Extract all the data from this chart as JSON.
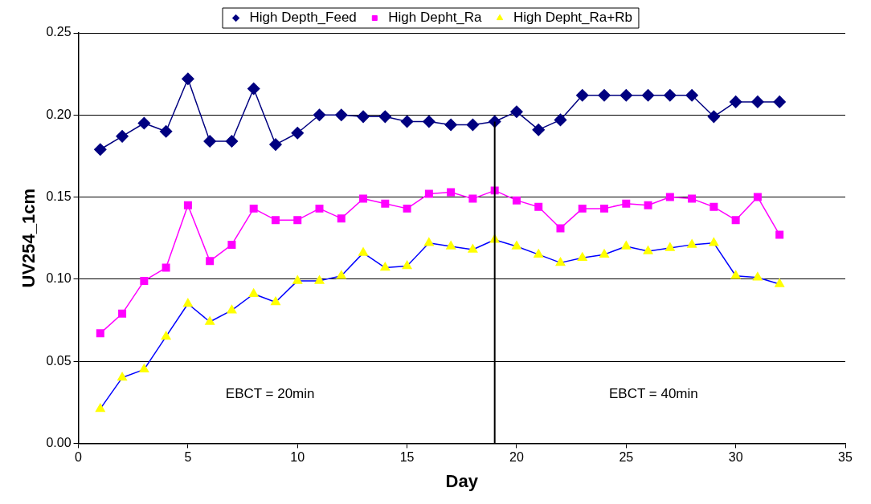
{
  "chart_data": {
    "type": "line",
    "xlabel": "Day",
    "ylabel": "UV254_1cm",
    "x": [
      1,
      2,
      3,
      4,
      5,
      6,
      7,
      8,
      9,
      10,
      11,
      12,
      13,
      14,
      15,
      16,
      17,
      18,
      19,
      20,
      21,
      22,
      23,
      24,
      25,
      26,
      27,
      28,
      29,
      30,
      31,
      32
    ],
    "series": [
      {
        "name": "High Depth_Feed",
        "color": "#000080",
        "marker": "diamond",
        "values": [
          0.179,
          0.187,
          0.195,
          0.19,
          0.222,
          0.184,
          0.184,
          0.216,
          0.182,
          0.189,
          0.2,
          0.2,
          0.199,
          0.199,
          0.196,
          0.196,
          0.194,
          0.194,
          0.196,
          0.202,
          0.191,
          0.197,
          0.212,
          0.212,
          0.212,
          0.212,
          0.212,
          0.212,
          0.199,
          0.208,
          0.208,
          0.208
        ]
      },
      {
        "name": "High Depht_Ra",
        "color": "#ff00ff",
        "marker": "square",
        "values": [
          0.067,
          0.079,
          0.099,
          0.107,
          0.145,
          0.111,
          0.121,
          0.143,
          0.136,
          0.136,
          0.143,
          0.137,
          0.149,
          0.146,
          0.143,
          0.152,
          0.153,
          0.149,
          0.154,
          0.148,
          0.144,
          0.131,
          0.143,
          0.143,
          0.146,
          0.145,
          0.15,
          0.149,
          0.144,
          0.136,
          0.15,
          0.127
        ]
      },
      {
        "name": "High Depht_Ra+Rb",
        "color": "#0000ff",
        "colors": [
          "#ffff00",
          "#ffff00",
          "#ffff00",
          "#ffff00",
          "#ffff00",
          "#ffff00",
          "#ffff00",
          "#ffff00",
          "#ffff00",
          "#ffff00",
          "#ffff00",
          "#ffff00",
          "#ffff00",
          "#ffff00",
          "#ffff00",
          "#ffff00",
          "#ffff00",
          "#ffff00",
          "#ffff00",
          "#ffff00",
          "#ffff00",
          "#ffff00",
          "#ffff00",
          "#ffff00",
          "#ffff00",
          "#ffff00",
          "#ffff00",
          "#ffff00",
          "#ffff00",
          "#ffff00",
          "#ffff00",
          "#ffff00"
        ],
        "marker": "triangle",
        "values": [
          0.021,
          0.04,
          0.045,
          0.065,
          0.085,
          0.074,
          0.081,
          0.091,
          0.086,
          0.099,
          0.099,
          0.102,
          0.116,
          0.107,
          0.108,
          0.122,
          0.12,
          0.118,
          0.124,
          0.12,
          0.115,
          0.11,
          0.113,
          0.115,
          0.12,
          0.117,
          0.119,
          0.121,
          0.122,
          0.102,
          0.101,
          0.097
        ]
      }
    ],
    "xlim": [
      0,
      35
    ],
    "xticks": [
      0,
      5,
      10,
      15,
      20,
      25,
      30,
      35
    ],
    "ylim": [
      0,
      0.25
    ],
    "yticks": [
      {
        "value": 0,
        "label": "0.00"
      },
      {
        "value": 0.05,
        "label": "0.05"
      },
      {
        "value": 0.1,
        "label": "0.10"
      },
      {
        "value": 0.15,
        "label": "0.15"
      },
      {
        "value": 0.2,
        "label": "0.20"
      },
      {
        "value": 0.25,
        "label": "0.25"
      }
    ],
    "ref_lines": [
      {
        "axis": "x",
        "value": 19,
        "color": "#000000"
      }
    ],
    "annotations": [
      "EBCT = 20min",
      "EBCT = 40min"
    ],
    "grid": "y",
    "legend": "top",
    "line_style": "solid"
  }
}
